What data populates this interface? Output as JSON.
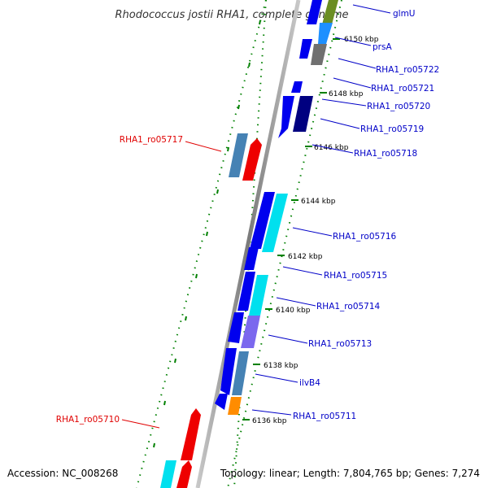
{
  "title": "Rhodococcus jostii RHA1, complete genome",
  "footer": {
    "accession": "Accession: NC_008268",
    "topology": "Topology: linear; Length: 7,804,765 bp; Genes: 7,274"
  },
  "ticks": [
    "6150 kbp",
    "6148 kbp",
    "6146 kbp",
    "6144 kbp",
    "6142 kbp",
    "6140 kbp",
    "6138 kbp",
    "6136 kbp"
  ],
  "gene_labels_right": [
    "glmU",
    "prsA",
    "RHA1_ro05722",
    "RHA1_ro05721",
    "RHA1_ro05720",
    "RHA1_ro05719",
    "RHA1_ro05718",
    "RHA1_ro05716",
    "RHA1_ro05715",
    "RHA1_ro05714",
    "RHA1_ro05713",
    "ilvB4",
    "RHA1_ro05711"
  ],
  "gene_labels_left": [
    "RHA1_ro05717",
    "RHA1_ro05710"
  ],
  "colors": {
    "blue": "#0000ee",
    "cyan": "#00e0ee",
    "red": "#ee0000",
    "steel": "#4682b4",
    "gray": "#707070",
    "navy": "#000080",
    "purple": "#7b68ee",
    "orange": "#ff8c00",
    "olive": "#6b8e23",
    "skyblue": "#1e90ff",
    "tick_green": "#008000",
    "label_blue": "#0000c8",
    "label_red": "#e00000"
  }
}
